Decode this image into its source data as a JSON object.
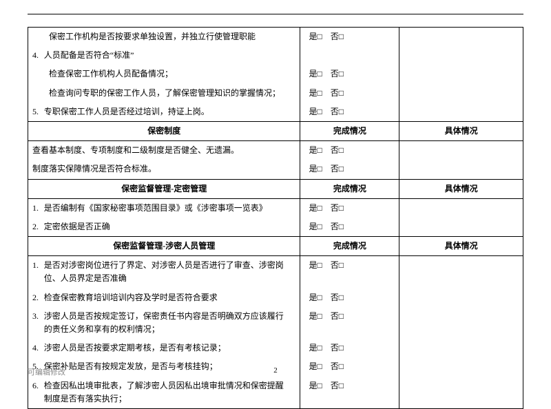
{
  "yes": "是",
  "no": "否",
  "box": "□",
  "headers": {
    "completion": "完成情况",
    "detail": "具体情况"
  },
  "section0": {
    "rows": [
      {
        "text": "保密工作机构是否按要求单独设置，并独立行使管理职能",
        "indent": true,
        "yn": true
      },
      {
        "num": "4.",
        "text": "人员配备是否符合“标准”",
        "yn": false
      },
      {
        "text": "检查保密工作机构人员配备情况；",
        "indent": true,
        "yn": true
      },
      {
        "text": "检查询问专职的保密工作人员，了解保密管理知识的掌握情况；",
        "indent": true,
        "yn": true
      },
      {
        "num": "5.",
        "text": "专职保密工作人员是否经过培训，持证上岗。",
        "yn": true
      }
    ]
  },
  "section1": {
    "title": "保密制度",
    "rows": [
      {
        "text": "查看基本制度、专项制度和二级制度是否健全、无遗漏。",
        "yn": true
      },
      {
        "text": "制度落实保障情况是否符合标准。",
        "yn": true
      }
    ]
  },
  "section2": {
    "title": "保密监督管理-定密管理",
    "rows": [
      {
        "num": "1.",
        "text": "是否编制有《国家秘密事项范围目录》或《涉密事项一览表》",
        "yn": true
      },
      {
        "num": "2.",
        "text": "定密依据是否正确",
        "yn": true
      }
    ]
  },
  "section3": {
    "title": "保密监督管理-涉密人员管理",
    "rows": [
      {
        "num": "1.",
        "text": "是否对涉密岗位进行了界定、对涉密人员是否进行了审查、涉密岗位、人员界定是否准确",
        "yn": true
      },
      {
        "num": "2.",
        "text": "检查保密教育培训培训内容及学时是否符合要求",
        "yn": true
      },
      {
        "num": "3.",
        "text": "涉密人员是否按规定签订，保密责任书内容是否明确双方应该履行的责任义务和享有的权利情况；",
        "yn": true
      },
      {
        "num": "4.",
        "text": "涉密人员是否按要求定期考核，是否有考核记录；",
        "yn": true
      },
      {
        "num": "5.",
        "text": "保密补贴是否有按规定发放，是否与考核挂钩；",
        "yn": true
      },
      {
        "num": "6.",
        "text": "检查因私出境审批表，了解涉密人员因私出境审批情况和保密提醒制度是否有落实执行；",
        "yn": true
      }
    ]
  },
  "footer": {
    "left": "可编辑修改",
    "page": "2"
  }
}
